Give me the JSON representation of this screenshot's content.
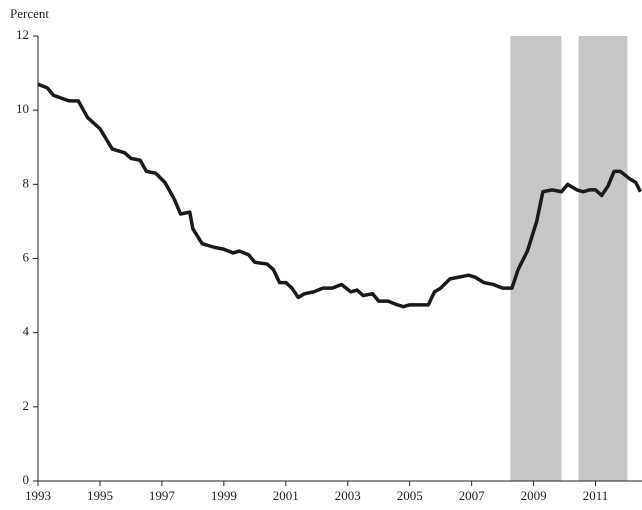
{
  "chart_data": {
    "type": "line",
    "y_axis_label": "Percent",
    "x": [
      1993.0,
      1993.3,
      1993.5,
      1994.0,
      1994.3,
      1994.6,
      1995.0,
      1995.4,
      1995.8,
      1996.0,
      1996.3,
      1996.5,
      1996.8,
      1997.1,
      1997.4,
      1997.6,
      1997.9,
      1998.0,
      1998.3,
      1998.7,
      1999.0,
      1999.3,
      1999.5,
      1999.8,
      2000.0,
      2000.4,
      2000.6,
      2000.8,
      2001.0,
      2001.2,
      2001.4,
      2001.6,
      2001.9,
      2002.2,
      2002.5,
      2002.8,
      2003.1,
      2003.3,
      2003.5,
      2003.8,
      2004.0,
      2004.3,
      2004.6,
      2004.8,
      2005.0,
      2005.3,
      2005.6,
      2005.8,
      2006.0,
      2006.3,
      2006.6,
      2006.9,
      2007.1,
      2007.4,
      2007.7,
      2008.0,
      2008.3,
      2008.5,
      2008.8,
      2009.1,
      2009.3,
      2009.6,
      2009.9,
      2010.1,
      2010.4,
      2010.6,
      2010.8,
      2011.0,
      2011.2,
      2011.4,
      2011.6,
      2011.8,
      2012.1,
      2012.3,
      2012.45
    ],
    "series": [
      {
        "color": "#1a1a1a",
        "values": [
          10.7,
          10.6,
          10.4,
          10.25,
          10.25,
          9.8,
          9.5,
          8.95,
          8.85,
          8.7,
          8.65,
          8.35,
          8.3,
          8.05,
          7.6,
          7.2,
          7.25,
          6.8,
          6.4,
          6.3,
          6.25,
          6.15,
          6.2,
          6.1,
          5.9,
          5.85,
          5.7,
          5.35,
          5.35,
          5.2,
          4.95,
          5.05,
          5.1,
          5.2,
          5.2,
          5.3,
          5.1,
          5.15,
          5.0,
          5.05,
          4.85,
          4.85,
          4.75,
          4.7,
          4.75,
          4.75,
          4.75,
          5.1,
          5.2,
          5.45,
          5.5,
          5.55,
          5.5,
          5.35,
          5.3,
          5.2,
          5.2,
          5.7,
          6.2,
          7.0,
          7.8,
          7.85,
          7.8,
          8.0,
          7.85,
          7.8,
          7.85,
          7.85,
          7.7,
          7.95,
          8.35,
          8.35,
          8.15,
          8.05,
          7.8
        ]
      }
    ],
    "shaded_regions": [
      [
        2008.25,
        2009.9
      ],
      [
        2010.45,
        2012.03
      ]
    ],
    "shade_color": "#c6c7c9",
    "xlim": [
      1993,
      2012.5
    ],
    "xticks": [
      1993,
      1995,
      1997,
      1999,
      2001,
      2003,
      2005,
      2007,
      2009,
      2011
    ],
    "ylim": [
      0,
      12
    ],
    "yticks": [
      0,
      2,
      4,
      6,
      8,
      10,
      12
    ]
  }
}
